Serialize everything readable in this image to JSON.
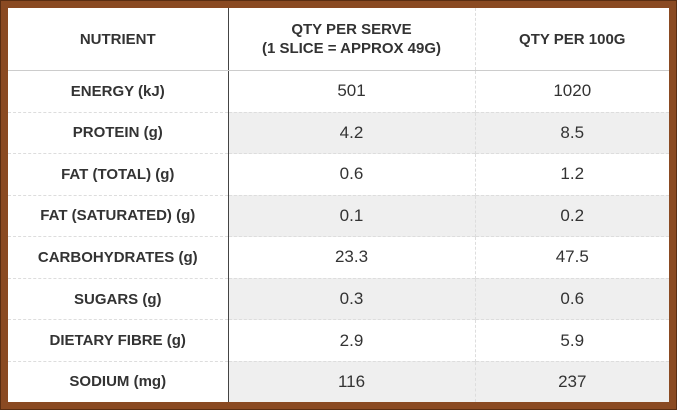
{
  "table": {
    "header": [
      "NUTRIENT",
      [
        "QTY PER SERVE",
        "(1 SLICE = APPROX 49G)"
      ],
      "QTY PER 100G"
    ],
    "rows": [
      [
        "ENERGY (kJ)",
        "501",
        "1020"
      ],
      [
        "PROTEIN (g)",
        "4.2",
        "8.5"
      ],
      [
        "FAT (TOTAL) (g)",
        "0.6",
        "1.2"
      ],
      [
        "FAT (SATURATED) (g)",
        "0.1",
        "0.2"
      ],
      [
        "CARBOHYDRATES (g)",
        "23.3",
        "47.5"
      ],
      [
        "SUGARS (g)",
        "0.3",
        "0.6"
      ],
      [
        "DIETARY FIBRE (g)",
        "2.9",
        "5.9"
      ],
      [
        "SODIUM (mg)",
        "116",
        "237"
      ]
    ]
  }
}
